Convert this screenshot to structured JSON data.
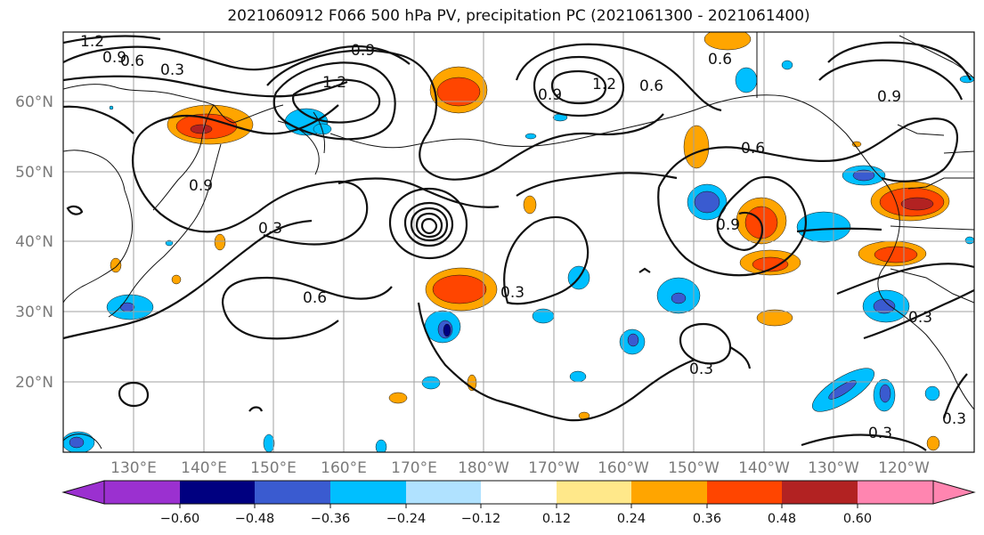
{
  "title": "2021060912 F066 500 hPa PV, precipitation PC (2021061300 - 2021061400)",
  "lat_labels": [
    "60°N",
    "50°N",
    "40°N",
    "30°N",
    "20°N"
  ],
  "lon_labels": [
    "130°E",
    "140°E",
    "150°E",
    "160°E",
    "170°E",
    "180°W",
    "170°W",
    "160°W",
    "150°W",
    "140°W",
    "130°W",
    "120°W"
  ],
  "contour_labels": [
    "1.2",
    "0.9",
    "0.6",
    "0.3",
    "1.2",
    "0.9",
    "1.2",
    "0.9",
    "0.6",
    "0.6",
    "0.9",
    "0.3",
    "0.9",
    "0.6",
    "0.3",
    "0.6",
    "0.9",
    "0.3",
    "0.3",
    "0.3",
    "0.3"
  ],
  "colorbar": {
    "colors": [
      "#9b30d0",
      "#000080",
      "#3a5bd0",
      "#00bfff",
      "#b0e2ff",
      "#ffffff",
      "#ffe88a",
      "#ffa500",
      "#ff4500",
      "#b22222",
      "#ff85b0"
    ],
    "labels": [
      "−0.60",
      "−0.48",
      "−0.36",
      "−0.24",
      "−0.12",
      "0.12",
      "0.24",
      "0.36",
      "0.48",
      "0.60"
    ]
  }
}
